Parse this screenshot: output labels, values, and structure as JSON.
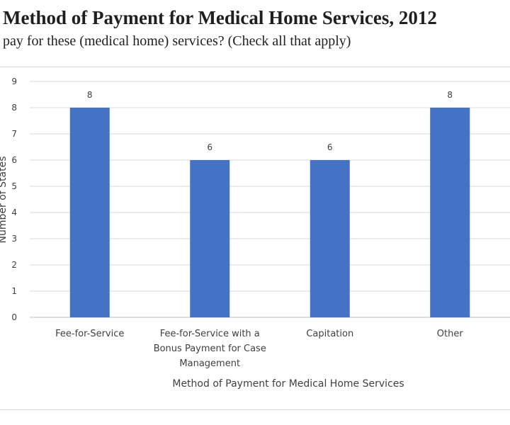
{
  "header": {
    "title": "Method of Payment for Medical Home Services, 2012",
    "question": "pay for these (medical home) services? (Check all that apply)"
  },
  "chart_data": {
    "type": "bar",
    "title": "",
    "categories": [
      [
        "Fee-for-Service"
      ],
      [
        "Fee-for-Service with a",
        "Bonus Payment for Case",
        "Management"
      ],
      [
        "Capitation"
      ],
      [
        "Other"
      ]
    ],
    "values": [
      8,
      6,
      6,
      8
    ],
    "xlabel": "Method  of Payment for Medical Home Services",
    "ylabel": "Number of States",
    "ylim": [
      0,
      9
    ],
    "yticks": [
      0,
      1,
      2,
      3,
      4,
      5,
      6,
      7,
      8,
      9
    ],
    "grid": true,
    "legend": "none",
    "bar_color": "#4472c4",
    "data_labels": true
  }
}
